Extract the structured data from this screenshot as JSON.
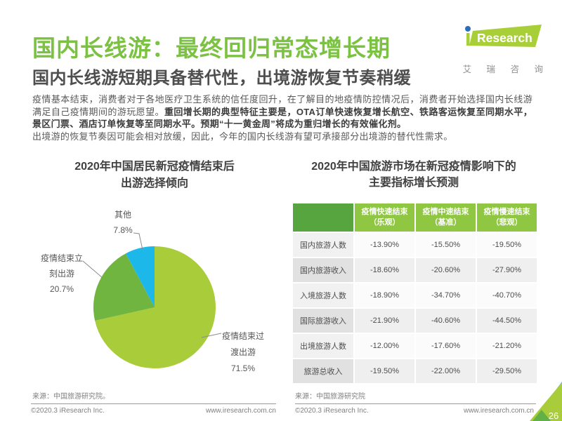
{
  "page": {
    "title": "国内长线游：最终回归常态增长期",
    "subtitle": "国内长线游短期具备替代性，出境游恢复节奏稍缓",
    "page_number": "26"
  },
  "logo": {
    "brand_i": "i",
    "brand": "Research",
    "caption": "艾 瑞 咨 询"
  },
  "body": {
    "p1_normal": "疫情基本结束，消费者对于各地医疗卫生系统的信任度回升，在了解目的地疫情防控情况后，消费者开始选择国内长线游满足自己疫情期间的游玩愿望。",
    "p1_bold": "重回增长期的典型特征主要是，OTA订单快速恢复增长航空、铁路客运恢复至同期水平，景区门票、酒店订单恢复等至同期水平。预期“十一黄金周”将成为重归增长的有效催化剂。",
    "p2": "出境游的恢复节奏因可能会相对放缓，因此，今年的国内长线游有望可承接部分出境游的替代性需求。"
  },
  "chart_data": [
    {
      "type": "pie",
      "title_lines": [
        "2020年中国居民新冠疫情结束后",
        "出游选择倾向"
      ],
      "legend_position": "outside-callouts",
      "slices": [
        {
          "label": "疫情结束过渡出游",
          "value": 71.5,
          "pct_text": "71.5%",
          "color": "#A9CC3A",
          "label_lines": [
            "疫情结束过",
            "渡出游"
          ]
        },
        {
          "label": "疫情结束立刻出游",
          "value": 20.7,
          "pct_text": "20.7%",
          "color": "#6FB53F",
          "label_lines": [
            "疫情结束立",
            "刻出游"
          ]
        },
        {
          "label": "其他",
          "value": 7.8,
          "pct_text": "7.8%",
          "color": "#1CB8E9",
          "label_lines": [
            "其他"
          ]
        }
      ]
    },
    {
      "type": "table",
      "title_lines": [
        "2020年中国旅游市场在新冠疫情影响下的",
        "主要指标增长预测"
      ],
      "columns": [
        [
          "疫情快速结束",
          "（乐观）"
        ],
        [
          "疫情中速结束",
          "（基准）"
        ],
        [
          "疫情慢速结束",
          "（悲观）"
        ]
      ],
      "rows": [
        {
          "label": "国内旅游人数",
          "values": [
            "-13.90%",
            "-15.50%",
            "-19.50%"
          ]
        },
        {
          "label": "国内旅游收入",
          "values": [
            "-18.60%",
            "-20.60%",
            "-27.90%"
          ]
        },
        {
          "label": "入境旅游人数",
          "values": [
            "-18.90%",
            "-34.70%",
            "-40.70%"
          ]
        },
        {
          "label": "国际旅游收入",
          "values": [
            "-21.90%",
            "-40.60%",
            "-44.50%"
          ]
        },
        {
          "label": "出境旅游人数",
          "values": [
            "-12.00%",
            "-17.60%",
            "-21.20%"
          ]
        },
        {
          "label": "旅游总收入",
          "values": [
            "-19.50%",
            "-22.00%",
            "-29.50%"
          ]
        }
      ]
    }
  ],
  "footers": {
    "left_source": "来源：中国旅游研究院。",
    "right_source": "来源：中国旅游研究院",
    "copyright": "©2020.3 iResearch Inc.",
    "website": "www.iresearch.com.cn"
  },
  "colors": {
    "title_green": "#7CC242",
    "logo_green": "#A9CF38",
    "logo_dot_blue": "#2B6DB8",
    "pie_light_green": "#A9CC3A",
    "pie_dark_green": "#6FB53F",
    "pie_cyan": "#1CB8E9",
    "table_header_green": "#8FC742",
    "table_corner_green": "#56A53F",
    "corner_blue": "#29ABE2",
    "corner_light_green": "#A9CC3A",
    "corner_dark_green": "#62B146"
  }
}
